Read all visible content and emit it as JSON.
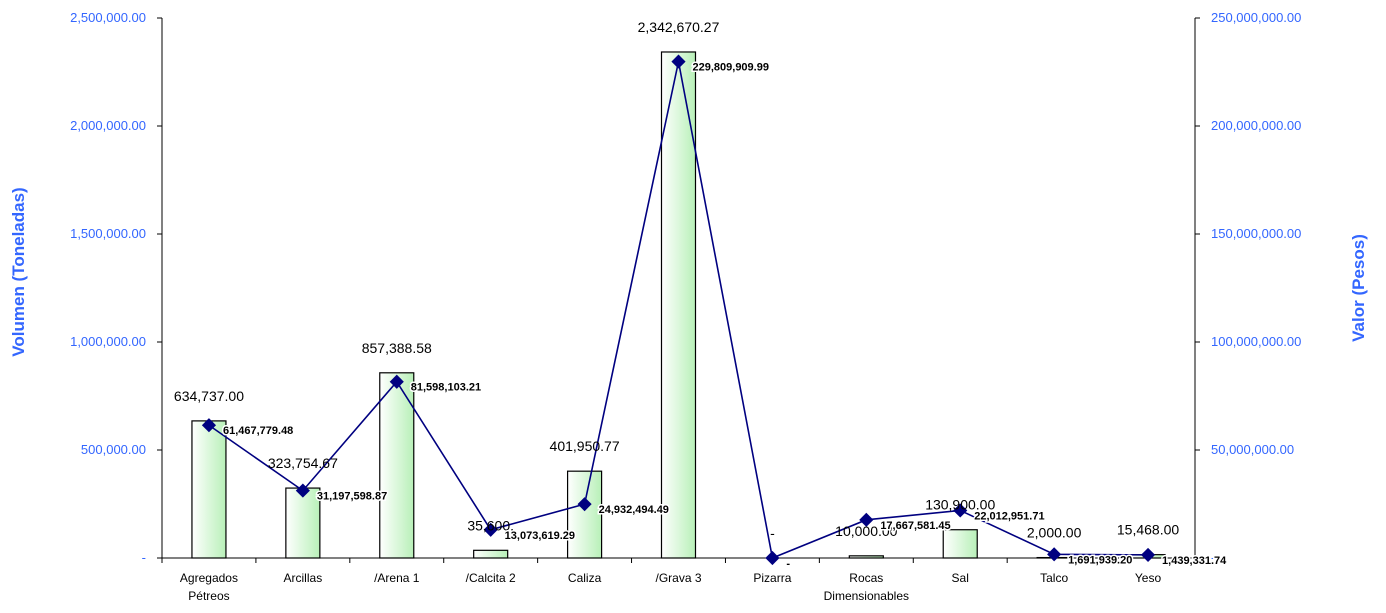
{
  "chart_data": {
    "type": "bar",
    "combo": "bar-line-dual-axis",
    "title": "",
    "categories": [
      [
        "Agregados",
        "Pétreos"
      ],
      [
        "Arcillas"
      ],
      [
        "/Arena 1"
      ],
      [
        "/Calcita 2"
      ],
      [
        "Caliza"
      ],
      [
        "/Grava 3"
      ],
      [
        "Pizarra"
      ],
      [
        "Rocas",
        "Dimensionables"
      ],
      [
        "Sal"
      ],
      [
        "Talco"
      ],
      [
        "Yeso"
      ]
    ],
    "ylabel": "Volumen (Toneladas)",
    "y2label": "Valor (Pesos)",
    "ylim": [
      0,
      2500000
    ],
    "y2lim": [
      0,
      250000000
    ],
    "yticks": [
      "-",
      "500,000.00",
      "1,000,000.00",
      "1,500,000.00",
      "2,000,000.00",
      "2,500,000.00"
    ],
    "y2ticks": [
      "-",
      "50,000,000.00",
      "100,000,000.00",
      "150,000,000.00",
      "200,000,000.00",
      "250,000,000.00"
    ],
    "grid": false,
    "legend": "none",
    "axis_color": "#3366ff",
    "series": [
      {
        "type": "bar",
        "axis": "left",
        "color": "#c6f5c6",
        "values": [
          634737,
          323754.67,
          857388.58,
          35600,
          401950.77,
          2342670.27,
          0,
          10000,
          130900,
          2000,
          15468
        ],
        "labels": [
          "634,737.00",
          "323,754.67",
          "857,388.58",
          "35,600.",
          "401,950.77",
          "2,342,670.27",
          "-",
          "10,000.00",
          "130,900.00",
          "2,000.00",
          "15,468.00"
        ]
      },
      {
        "type": "line",
        "axis": "right",
        "color": "#000080",
        "values": [
          61467779.48,
          31197598.87,
          81598103.21,
          13073619.29,
          24932494.49,
          229809909.99,
          0,
          17667581.45,
          22012951.71,
          1691939.2,
          1439331.74
        ],
        "labels": [
          "61,467,779.48",
          "31,197,598.87",
          "81,598,103.21",
          "13,073,619.29",
          "24,932,494.49",
          "229,809,909.99",
          "-",
          "17,667,581.45",
          "22,012,951.71",
          "1,691,939.20",
          "1,439,331.74"
        ]
      }
    ]
  }
}
